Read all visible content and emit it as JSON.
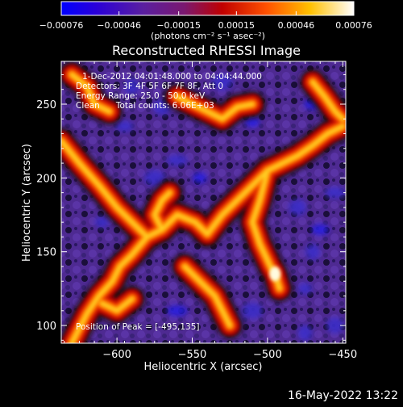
{
  "chart_data": {
    "type": "heatmap",
    "title": "Reconstructed RHESSI Image",
    "xlabel": "Heliocentric X (arcsec)",
    "ylabel": "Heliocentric Y (arcsec)",
    "xlim": [
      -637,
      -448
    ],
    "ylim": [
      88,
      279
    ],
    "x_ticks": [
      -600,
      -550,
      -500,
      -450
    ],
    "x_tick_labels": [
      "−600",
      "−550",
      "−500",
      "−450"
    ],
    "y_ticks": [
      100,
      150,
      200,
      250
    ],
    "y_tick_labels": [
      "100",
      "150",
      "200",
      "250"
    ],
    "colorbar": {
      "colormap": "blue-purple-red-yellow-white",
      "range": [
        -0.00076,
        0.00076
      ],
      "ticks": [
        -0.00076,
        -0.00046,
        -0.00015,
        0.00015,
        0.00046,
        0.00076
      ],
      "tick_labels": [
        "−0.00076",
        "−0.00046",
        "−0.00015",
        "0.00015",
        "0.00046",
        "0.00076"
      ],
      "label": "(photons cm⁻² s⁻¹ asec⁻²)"
    },
    "annotations": [
      "1-Dec-2012 04:01:48.000 to 04:04:44.000",
      "Detectors: 3F 4F 5F 6F 7F 8F, Att 0",
      "Energy Range: 25.0 - 50.0 keV",
      "Clean      Total counts: 6.06E+03"
    ],
    "peak_text": "Position of Peak = [-495,135]",
    "peak": [
      -495,
      135
    ],
    "bright_ridges": [
      {
        "points": [
          [
            -637,
            225
          ],
          [
            -625,
            210
          ],
          [
            -612,
            195
          ],
          [
            -600,
            180
          ],
          [
            -590,
            170
          ],
          [
            -580,
            160
          ],
          [
            -570,
            165
          ],
          [
            -560,
            175
          ],
          [
            -548,
            170
          ],
          [
            -540,
            162
          ]
        ]
      },
      {
        "points": [
          [
            -580,
            160
          ],
          [
            -590,
            148
          ],
          [
            -598,
            140
          ],
          [
            -603,
            130
          ],
          [
            -612,
            120
          ],
          [
            -620,
            108
          ],
          [
            -625,
            98
          ],
          [
            -630,
            88
          ]
        ]
      },
      {
        "points": [
          [
            -570,
            165
          ],
          [
            -575,
            175
          ],
          [
            -570,
            185
          ],
          [
            -565,
            190
          ]
        ]
      },
      {
        "points": [
          [
            -540,
            162
          ],
          [
            -530,
            175
          ],
          [
            -520,
            185
          ],
          [
            -510,
            195
          ],
          [
            -500,
            205
          ],
          [
            -490,
            210
          ],
          [
            -480,
            215
          ],
          [
            -470,
            222
          ],
          [
            -460,
            230
          ],
          [
            -450,
            235
          ]
        ]
      },
      {
        "points": [
          [
            -500,
            205
          ],
          [
            -505,
            185
          ],
          [
            -510,
            170
          ],
          [
            -505,
            155
          ],
          [
            -498,
            140
          ],
          [
            -495,
            135
          ],
          [
            -492,
            125
          ]
        ]
      },
      {
        "points": [
          [
            -555,
            140
          ],
          [
            -545,
            130
          ],
          [
            -535,
            120
          ],
          [
            -530,
            110
          ],
          [
            -525,
            100
          ]
        ]
      },
      {
        "points": [
          [
            -630,
            270
          ],
          [
            -620,
            262
          ],
          [
            -615,
            250
          ],
          [
            -605,
            245
          ]
        ]
      },
      {
        "points": [
          [
            -560,
            255
          ],
          [
            -550,
            250
          ],
          [
            -540,
            245
          ],
          [
            -530,
            240
          ],
          [
            -520,
            248
          ],
          [
            -510,
            250
          ]
        ]
      },
      {
        "points": [
          [
            -470,
            265
          ],
          [
            -462,
            255
          ],
          [
            -455,
            245
          ],
          [
            -450,
            240
          ]
        ]
      },
      {
        "points": [
          [
            -610,
            115
          ],
          [
            -600,
            110
          ],
          [
            -590,
            118
          ]
        ]
      }
    ],
    "blue_spots": [
      [
        -510,
        238
      ],
      [
        -570,
        248
      ],
      [
        -560,
        212
      ],
      [
        -590,
        262
      ],
      [
        -470,
        250
      ],
      [
        -510,
        110
      ],
      [
        -475,
        125
      ],
      [
        -455,
        100
      ],
      [
        -560,
        110
      ],
      [
        -470,
        150
      ],
      [
        -595,
        235
      ],
      [
        -575,
        200
      ],
      [
        -545,
        200
      ],
      [
        -522,
        102
      ],
      [
        -455,
        190
      ],
      [
        -475,
        95
      ],
      [
        -465,
        165
      ],
      [
        -530,
        265
      ],
      [
        -610,
        170
      ],
      [
        -480,
        180
      ]
    ],
    "grid": false
  },
  "footer": {
    "date_stamp": "16-May-2022 13:22"
  }
}
